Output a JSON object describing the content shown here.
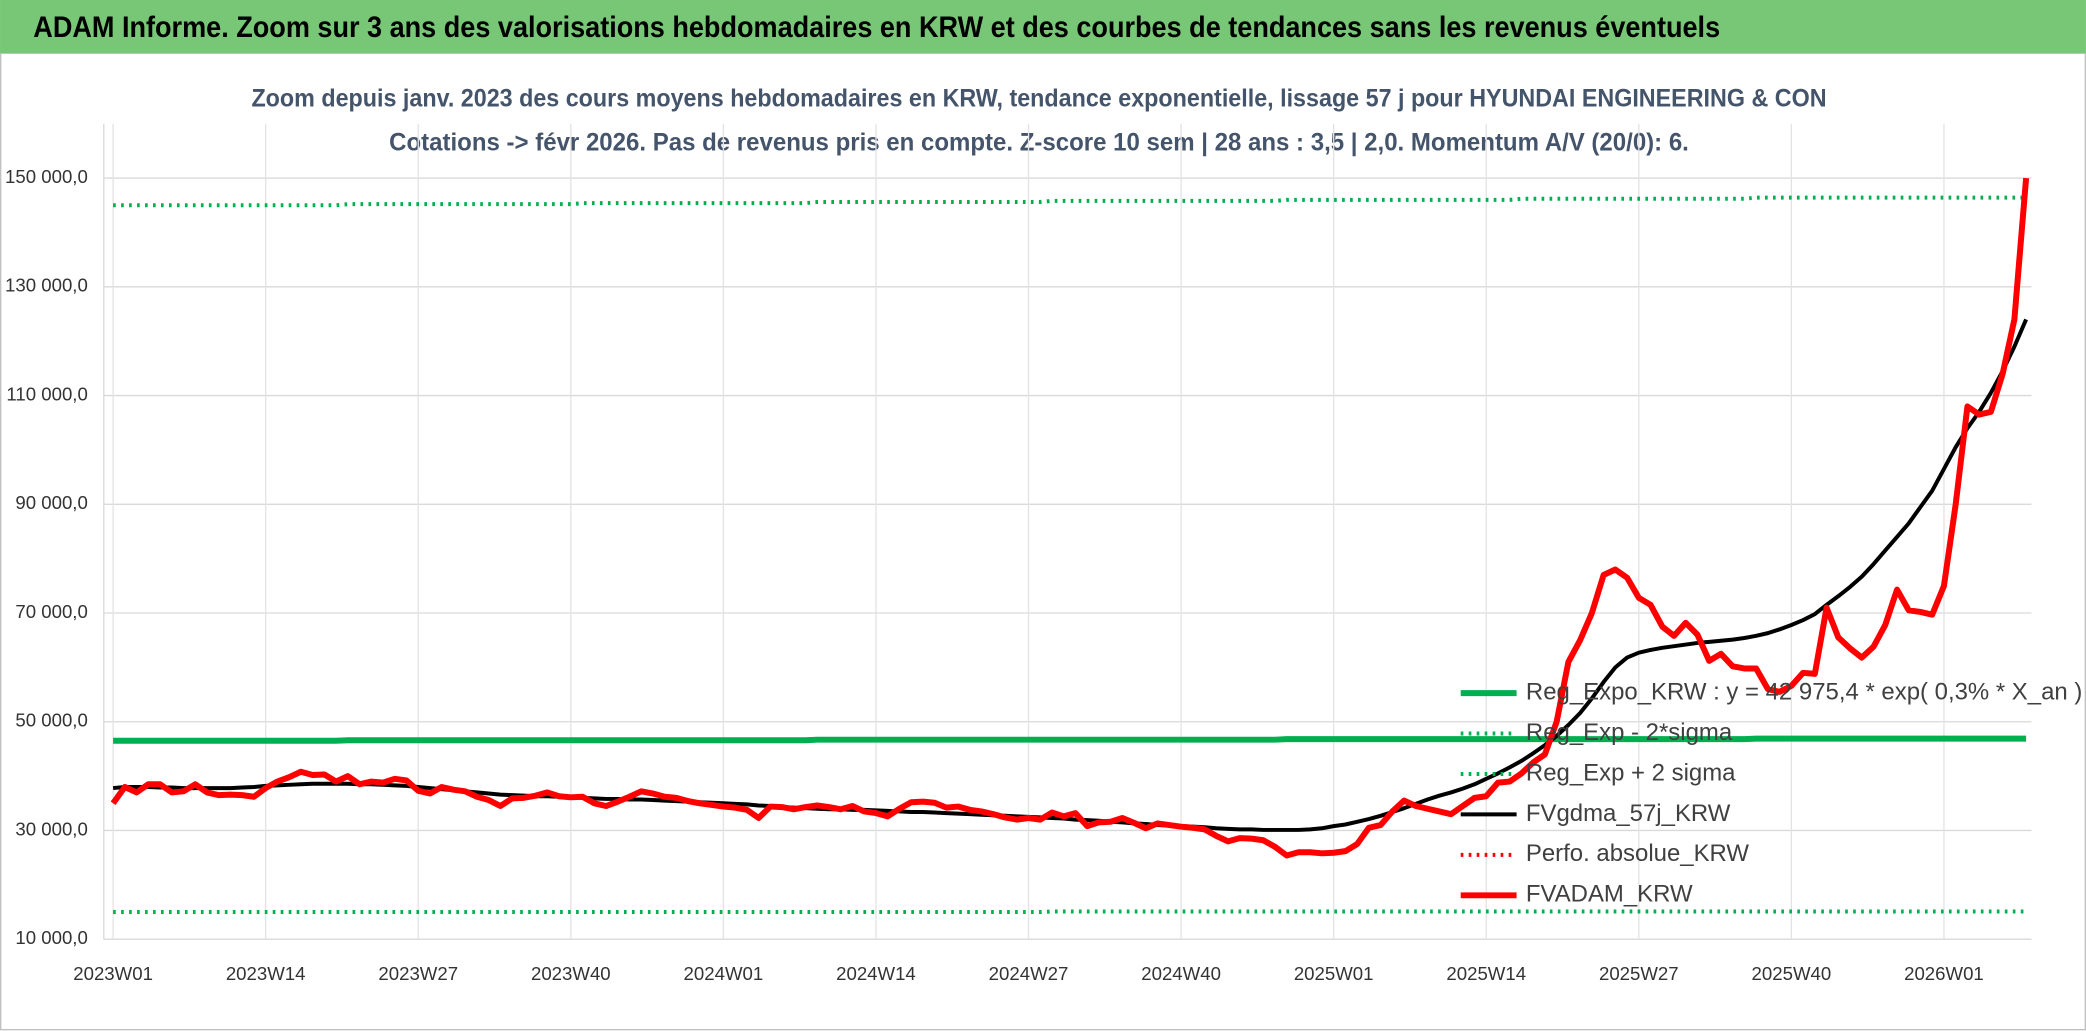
{
  "chart_data": {
    "type": "line",
    "title": "ADAM Informe. Zoom sur 3 ans des valorisations hebdomadaires en KRW et des courbes de tendances sans les revenus éventuels",
    "subtitle": [
      "Zoom depuis janv. 2023 des cours moyens hebdomadaires en KRW, tendance exponentielle, lissage 57 j pour HYUNDAI ENGINEERING & CON",
      "Cotations -> févr 2026. Pas de revenus pris en compte. Z-score 10 sem | 28 ans : 3,5 | 2,0. Momentum A/V (20/0): 6."
    ],
    "categories": [
      "2023W01",
      null,
      null,
      null,
      null,
      null,
      null,
      null,
      null,
      null,
      null,
      null,
      null,
      "2023W14",
      null,
      null,
      null,
      null,
      null,
      null,
      null,
      null,
      null,
      null,
      null,
      null,
      "2023W27",
      null,
      null,
      null,
      null,
      null,
      null,
      null,
      null,
      null,
      null,
      null,
      null,
      "2023W40",
      null,
      null,
      null,
      null,
      null,
      null,
      null,
      null,
      null,
      null,
      null,
      null,
      "2024W01",
      null,
      null,
      null,
      null,
      null,
      null,
      null,
      null,
      null,
      null,
      null,
      null,
      "2024W14",
      null,
      null,
      null,
      null,
      null,
      null,
      null,
      null,
      null,
      null,
      null,
      null,
      "2024W27",
      null,
      null,
      null,
      null,
      null,
      null,
      null,
      null,
      null,
      null,
      null,
      null,
      "2024W40",
      null,
      null,
      null,
      null,
      null,
      null,
      null,
      null,
      null,
      null,
      null,
      null,
      "2025W01",
      null,
      null,
      null,
      null,
      null,
      null,
      null,
      null,
      null,
      null,
      null,
      null,
      "2025W14",
      null,
      null,
      null,
      null,
      null,
      null,
      null,
      null,
      null,
      null,
      null,
      null,
      "2025W27",
      null,
      null,
      null,
      null,
      null,
      null,
      null,
      null,
      null,
      null,
      null,
      null,
      "2025W40",
      null,
      null,
      null,
      null,
      null,
      null,
      null,
      null,
      null,
      null,
      null,
      null,
      "2026W01",
      null,
      null,
      null,
      null,
      null,
      null,
      null
    ],
    "ylim": [
      10000,
      160000
    ],
    "yticks": [
      {
        "value": 10000,
        "label": "10 000,0"
      },
      {
        "value": 30000,
        "label": "30 000,0"
      },
      {
        "value": 50000,
        "label": "50 000,0"
      },
      {
        "value": 70000,
        "label": "70 000,0"
      },
      {
        "value": 90000,
        "label": "90 000,0"
      },
      {
        "value": 110000,
        "label": "110 000,0"
      },
      {
        "value": 130000,
        "label": "130 000,0"
      },
      {
        "value": 150000,
        "label": "150 000,0"
      }
    ],
    "grid": true,
    "legend": "right",
    "series": [
      {
        "name": "Reg_Expo_KRW : y = 42 975,4 * exp( 0,3% *  X_an )",
        "color": "#00b050",
        "style": "bold",
        "values": [
          46500,
          46500,
          46500,
          46500,
          46500,
          46500,
          46500,
          46500,
          46500,
          46500,
          46500,
          46500,
          46500,
          46500,
          46500,
          46500,
          46500,
          46500,
          46500,
          46500,
          46600,
          46600,
          46600,
          46600,
          46600,
          46600,
          46600,
          46600,
          46600,
          46600,
          46600,
          46600,
          46600,
          46600,
          46600,
          46600,
          46600,
          46600,
          46600,
          46600,
          46600,
          46600,
          46600,
          46600,
          46600,
          46600,
          46600,
          46600,
          46600,
          46600,
          46600,
          46600,
          46600,
          46600,
          46600,
          46600,
          46600,
          46600,
          46600,
          46600,
          46700,
          46700,
          46700,
          46700,
          46700,
          46700,
          46700,
          46700,
          46700,
          46700,
          46700,
          46700,
          46700,
          46700,
          46700,
          46700,
          46700,
          46700,
          46700,
          46700,
          46700,
          46700,
          46700,
          46700,
          46700,
          46700,
          46700,
          46700,
          46700,
          46700,
          46700,
          46700,
          46700,
          46700,
          46700,
          46700,
          46700,
          46700,
          46700,
          46700,
          46800,
          46800,
          46800,
          46800,
          46800,
          46800,
          46800,
          46800,
          46800,
          46800,
          46800,
          46800,
          46800,
          46800,
          46800,
          46800,
          46800,
          46800,
          46800,
          46800,
          46800,
          46800,
          46800,
          46800,
          46800,
          46800,
          46800,
          46800,
          46800,
          46800,
          46800,
          46800,
          46800,
          46800,
          46800,
          46800,
          46800,
          46800,
          46800,
          46800,
          46900,
          46900,
          46900,
          46900,
          46900,
          46900,
          46900,
          46900,
          46900,
          46900,
          46900,
          46900,
          46900,
          46900,
          46900,
          46900,
          46900,
          46900,
          46900,
          46900,
          46900,
          46900,
          46900,
          46900
        ]
      },
      {
        "name": "Reg_Exp - 2*sigma",
        "color": "#00b050",
        "style": "dotted",
        "values": [
          15000,
          15000,
          15000,
          15000,
          15000,
          15000,
          15000,
          15000,
          15000,
          15000,
          15000,
          15000,
          15000,
          15000,
          15000,
          15000,
          15000,
          15000,
          15000,
          15000,
          15000,
          15000,
          15000,
          15000,
          15000,
          15000,
          15000,
          15000,
          15000,
          15000,
          15000,
          15000,
          15000,
          15000,
          15000,
          15000,
          15000,
          15000,
          15000,
          15000,
          15000,
          15000,
          15000,
          15000,
          15000,
          15000,
          15000,
          15000,
          15000,
          15000,
          15000,
          15000,
          15000,
          15000,
          15000,
          15000,
          15000,
          15000,
          15000,
          15000,
          15000,
          15000,
          15000,
          15000,
          15000,
          15000,
          15000,
          15000,
          15000,
          15000,
          15000,
          15000,
          15000,
          15000,
          15000,
          15000,
          15000,
          15000,
          15000,
          15000,
          15100,
          15100,
          15100,
          15100,
          15100,
          15100,
          15100,
          15100,
          15100,
          15100,
          15100,
          15100,
          15100,
          15100,
          15100,
          15100,
          15100,
          15100,
          15100,
          15100,
          15100,
          15100,
          15100,
          15100,
          15100,
          15100,
          15100,
          15100,
          15100,
          15100,
          15100,
          15100,
          15100,
          15100,
          15100,
          15100,
          15100,
          15100,
          15100,
          15100,
          15100,
          15100,
          15100,
          15100,
          15100,
          15100,
          15100,
          15100,
          15100,
          15100,
          15100,
          15100,
          15100,
          15100,
          15100,
          15100,
          15100,
          15100,
          15100,
          15100,
          15100,
          15100,
          15100,
          15100,
          15100,
          15100,
          15100,
          15100,
          15100,
          15100,
          15100,
          15100,
          15100,
          15100,
          15100,
          15100,
          15100,
          15100,
          15100,
          15100,
          15100,
          15100,
          15100,
          15100
        ]
      },
      {
        "name": "Reg_Exp + 2 sigma",
        "color": "#00b050",
        "style": "dotted",
        "values": [
          145000,
          145000,
          145000,
          145000,
          145000,
          145000,
          145000,
          145000,
          145000,
          145000,
          145000,
          145000,
          145000,
          145000,
          145000,
          145000,
          145000,
          145000,
          145000,
          145000,
          145200,
          145200,
          145200,
          145200,
          145200,
          145200,
          145200,
          145200,
          145200,
          145200,
          145200,
          145200,
          145200,
          145200,
          145200,
          145200,
          145200,
          145200,
          145200,
          145200,
          145400,
          145400,
          145400,
          145400,
          145400,
          145400,
          145400,
          145400,
          145400,
          145400,
          145400,
          145400,
          145400,
          145400,
          145400,
          145400,
          145400,
          145400,
          145400,
          145400,
          145600,
          145600,
          145600,
          145600,
          145600,
          145600,
          145600,
          145600,
          145600,
          145600,
          145600,
          145600,
          145600,
          145600,
          145600,
          145600,
          145600,
          145600,
          145600,
          145600,
          145800,
          145800,
          145800,
          145800,
          145800,
          145800,
          145800,
          145800,
          145800,
          145800,
          145800,
          145800,
          145800,
          145800,
          145800,
          145800,
          145800,
          145800,
          145800,
          145800,
          146000,
          146000,
          146000,
          146000,
          146000,
          146000,
          146000,
          146000,
          146000,
          146000,
          146000,
          146000,
          146000,
          146000,
          146000,
          146000,
          146000,
          146000,
          146000,
          146000,
          146200,
          146200,
          146200,
          146200,
          146200,
          146200,
          146200,
          146200,
          146200,
          146200,
          146200,
          146200,
          146200,
          146200,
          146200,
          146200,
          146200,
          146200,
          146200,
          146200,
          146400,
          146400,
          146400,
          146400,
          146400,
          146400,
          146400,
          146400,
          146400,
          146400,
          146400,
          146400,
          146400,
          146400,
          146400,
          146400,
          146400,
          146400,
          146400,
          146400,
          146400,
          146400,
          146400,
          146400
        ]
      },
      {
        "name": "FVgdma_57j_KRW",
        "color": "#000000",
        "style": "solid",
        "values": [
          37800,
          38000,
          38000,
          38000,
          37900,
          37900,
          37800,
          37800,
          37800,
          37800,
          37800,
          37900,
          38000,
          38200,
          38300,
          38400,
          38500,
          38600,
          38600,
          38600,
          38600,
          38500,
          38500,
          38400,
          38300,
          38200,
          38000,
          37800,
          37600,
          37400,
          37200,
          37000,
          36800,
          36600,
          36500,
          36400,
          36300,
          36300,
          36200,
          36100,
          36000,
          35900,
          35800,
          35800,
          35700,
          35700,
          35600,
          35500,
          35400,
          35300,
          35200,
          35100,
          35000,
          34900,
          34800,
          34600,
          34500,
          34300,
          34200,
          34100,
          34000,
          33900,
          33900,
          33800,
          33800,
          33700,
          33600,
          33500,
          33400,
          33400,
          33300,
          33200,
          33100,
          33000,
          32900,
          32800,
          32700,
          32600,
          32500,
          32400,
          32300,
          32200,
          32000,
          31900,
          31800,
          31600,
          31500,
          31300,
          31200,
          31000,
          30900,
          30800,
          30700,
          30600,
          30400,
          30300,
          30200,
          30200,
          30100,
          30100,
          30100,
          30100,
          30200,
          30400,
          30800,
          31100,
          31600,
          32100,
          32700,
          33400,
          34100,
          34900,
          35700,
          36400,
          37000,
          37700,
          38500,
          39500,
          40500,
          41600,
          42800,
          44200,
          45700,
          47400,
          49400,
          51600,
          54300,
          57300,
          60000,
          61800,
          62700,
          63200,
          63600,
          63900,
          64200,
          64500,
          64700,
          64900,
          65100,
          65400,
          65800,
          66300,
          67000,
          67800,
          68700,
          69800,
          71500,
          73100,
          74800,
          76700,
          79000,
          81500,
          84000,
          86500,
          89500,
          92500,
          96500,
          100500,
          104000,
          107000,
          110500,
          114500,
          119000,
          124000
        ]
      },
      {
        "name": "Perfo. absolue_KRW",
        "color": "#ff0000",
        "style": "dotted"
      },
      {
        "name": "FVADAM_KRW",
        "color": "#ff0000",
        "style": "bold",
        "values": [
          35000,
          38000,
          37000,
          38500,
          38500,
          37000,
          37200,
          38500,
          37000,
          36500,
          36600,
          36500,
          36200,
          37800,
          39000,
          39800,
          40800,
          40200,
          40300,
          39000,
          40000,
          38500,
          39000,
          38800,
          39500,
          39200,
          37300,
          36800,
          38000,
          37500,
          37200,
          36200,
          35600,
          34500,
          35900,
          36000,
          36400,
          37000,
          36300,
          36100,
          36200,
          35000,
          34500,
          35300,
          36200,
          37200,
          36800,
          36200,
          36000,
          35400,
          35000,
          34700,
          34400,
          34200,
          33800,
          32300,
          34400,
          34300,
          33900,
          34300,
          34600,
          34300,
          33900,
          34500,
          33500,
          33200,
          32600,
          34000,
          35200,
          35300,
          35100,
          34200,
          34400,
          33800,
          33500,
          33000,
          32400,
          32000,
          32300,
          32000,
          33300,
          32600,
          33200,
          30800,
          31500,
          31600,
          32300,
          31400,
          30400,
          31300,
          31000,
          30700,
          30500,
          30200,
          29000,
          28000,
          28600,
          28500,
          28200,
          27000,
          25400,
          26000,
          26000,
          25800,
          25900,
          26200,
          27500,
          30500,
          31000,
          33500,
          35500,
          34500,
          34000,
          33500,
          33000,
          34500,
          36000,
          36300,
          38800,
          39000,
          40500,
          42500,
          44000,
          50000,
          61000,
          65000,
          70000,
          77000,
          78000,
          76500,
          72800,
          71500,
          67500,
          65800,
          68200,
          66000,
          61200,
          62500,
          60200,
          59800,
          59800,
          56000,
          55500,
          56600,
          59000,
          58800,
          71000,
          65500,
          63500,
          61800,
          63800,
          67800,
          74300,
          70500,
          70200,
          69700,
          75000,
          90000,
          108000,
          106500,
          107000,
          114000,
          124000,
          150000
        ]
      }
    ]
  }
}
